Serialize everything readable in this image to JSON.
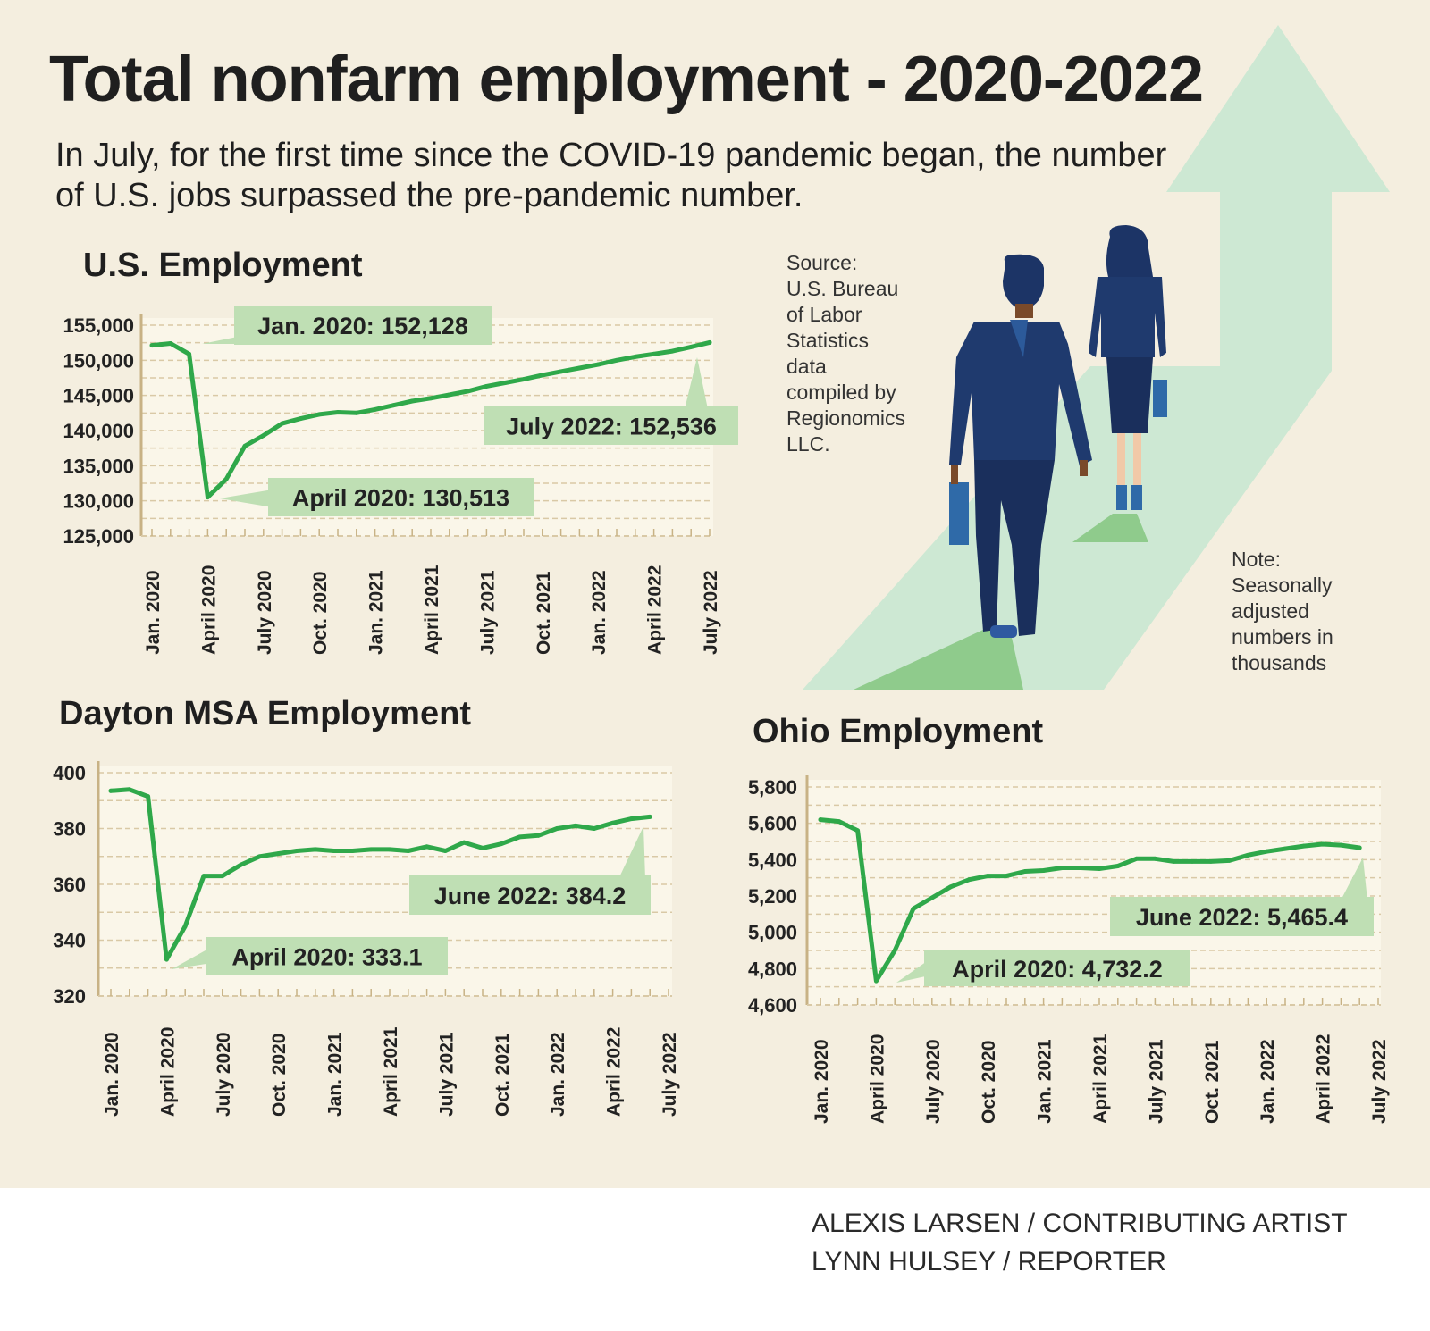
{
  "title": "Total nonfarm employment - 2020-2022",
  "subtitle_lines": [
    "In July, for the first time since the COVID-19 pandemic began, the number",
    "of U.S. jobs surpassed the pre-pandemic number."
  ],
  "source_lines": [
    "Source:",
    "U.S. Bureau",
    "of Labor",
    "Statistics",
    "data",
    "compiled by",
    "Regionomics",
    "LLC."
  ],
  "note_lines": [
    "Note:",
    "Seasonally",
    "adjusted",
    "numbers in",
    "thousands"
  ],
  "credits": [
    "ALEXIS LARSEN / CONTRIBUTING ARTIST",
    "LYNN HULSEY / REPORTER"
  ],
  "colors": {
    "background": "#f4eedf",
    "plot_background": "#faf6e9",
    "line": "#2fa84a",
    "callout": "#bfdfb4",
    "arrow": "#cde8d3",
    "suit": "#1f3a6e"
  },
  "chart_data": [
    {
      "type": "line",
      "title": "U.S. Employment",
      "x_tick_labels": [
        "Jan. 2020",
        "April 2020",
        "July 2020",
        "Oct. 2020",
        "Jan. 2021",
        "April 2021",
        "July 2021",
        "Oct. 2021",
        "Jan. 2022",
        "April 2022",
        "July 2022"
      ],
      "y_tick_labels": [
        "155,000",
        "150,000",
        "145,000",
        "140,000",
        "135,000",
        "130,000",
        "125,000"
      ],
      "ylim": [
        125000,
        155000
      ],
      "grid": true,
      "series": [
        {
          "x": [
            "2020-01",
            "2020-02",
            "2020-03",
            "2020-04",
            "2020-05",
            "2020-06",
            "2020-07",
            "2020-08",
            "2020-09",
            "2020-10",
            "2020-11",
            "2020-12",
            "2021-01",
            "2021-02",
            "2021-03",
            "2021-04",
            "2021-05",
            "2021-06",
            "2021-07",
            "2021-08",
            "2021-09",
            "2021-10",
            "2021-11",
            "2021-12",
            "2022-01",
            "2022-02",
            "2022-03",
            "2022-04",
            "2022-05",
            "2022-06",
            "2022-07"
          ],
          "values": [
            152128,
            152400,
            150900,
            130513,
            133100,
            137800,
            139300,
            141000,
            141700,
            142300,
            142600,
            142500,
            143000,
            143600,
            144200,
            144600,
            145100,
            145600,
            146300,
            146800,
            147300,
            147900,
            148400,
            148900,
            149400,
            150000,
            150500,
            150900,
            151300,
            151900,
            152536
          ]
        }
      ],
      "annotations": [
        {
          "text": "Jan. 2020: 152,128",
          "x": "2020-01",
          "y": 152128
        },
        {
          "text": "April 2020: 130,513",
          "x": "2020-04",
          "y": 130513
        },
        {
          "text": "July 2022: 152,536",
          "x": "2022-07",
          "y": 152536
        }
      ]
    },
    {
      "type": "line",
      "title": "Dayton MSA Employment",
      "x_tick_labels": [
        "Jan. 2020",
        "April 2020",
        "July 2020",
        "Oct. 2020",
        "Jan. 2021",
        "April 2021",
        "July 2021",
        "Oct. 2021",
        "Jan. 2022",
        "April 2022",
        "July 2022"
      ],
      "y_tick_labels": [
        "400",
        "380",
        "360",
        "340",
        "320"
      ],
      "ylim": [
        320,
        400
      ],
      "grid": true,
      "series": [
        {
          "x": [
            "2020-01",
            "2020-02",
            "2020-03",
            "2020-04",
            "2020-05",
            "2020-06",
            "2020-07",
            "2020-08",
            "2020-09",
            "2020-10",
            "2020-11",
            "2020-12",
            "2021-01",
            "2021-02",
            "2021-03",
            "2021-04",
            "2021-05",
            "2021-06",
            "2021-07",
            "2021-08",
            "2021-09",
            "2021-10",
            "2021-11",
            "2021-12",
            "2022-01",
            "2022-02",
            "2022-03",
            "2022-04",
            "2022-05",
            "2022-06"
          ],
          "values": [
            393.5,
            394,
            391.5,
            333.1,
            345,
            363,
            363,
            367,
            370,
            371,
            372,
            372.5,
            372,
            372,
            372.5,
            372.5,
            372,
            373.5,
            372,
            375,
            373,
            374.5,
            377,
            377.5,
            380,
            381,
            380,
            382,
            383.5,
            384.2
          ]
        }
      ],
      "annotations": [
        {
          "text": "April 2020: 333.1",
          "x": "2020-04",
          "y": 333.1
        },
        {
          "text": "June 2022: 384.2",
          "x": "2022-06",
          "y": 384.2
        }
      ]
    },
    {
      "type": "line",
      "title": "Ohio Employment",
      "x_tick_labels": [
        "Jan. 2020",
        "April 2020",
        "July 2020",
        "Oct. 2020",
        "Jan. 2021",
        "April 2021",
        "July 2021",
        "Oct. 2021",
        "Jan. 2022",
        "April 2022",
        "July 2022"
      ],
      "y_tick_labels": [
        "5,800",
        "5,600",
        "5,400",
        "5,200",
        "5,000",
        "4,800",
        "4,600"
      ],
      "ylim": [
        4600,
        5800
      ],
      "grid": true,
      "series": [
        {
          "x": [
            "2020-01",
            "2020-02",
            "2020-03",
            "2020-04",
            "2020-05",
            "2020-06",
            "2020-07",
            "2020-08",
            "2020-09",
            "2020-10",
            "2020-11",
            "2020-12",
            "2021-01",
            "2021-02",
            "2021-03",
            "2021-04",
            "2021-05",
            "2021-06",
            "2021-07",
            "2021-08",
            "2021-09",
            "2021-10",
            "2021-11",
            "2021-12",
            "2022-01",
            "2022-02",
            "2022-03",
            "2022-04",
            "2022-05",
            "2022-06"
          ],
          "values": [
            5620,
            5610,
            5560,
            4732.2,
            4900,
            5130,
            5190,
            5250,
            5290,
            5310,
            5310,
            5335,
            5340,
            5355,
            5355,
            5350,
            5365,
            5405,
            5405,
            5390,
            5390,
            5390,
            5395,
            5425,
            5445,
            5460,
            5475,
            5485,
            5480,
            5465.4
          ]
        }
      ],
      "annotations": [
        {
          "text": "April 2020: 4,732.2",
          "x": "2020-04",
          "y": 4732.2
        },
        {
          "text": "June 2022: 5,465.4",
          "x": "2022-06",
          "y": 5465.4
        }
      ]
    }
  ]
}
